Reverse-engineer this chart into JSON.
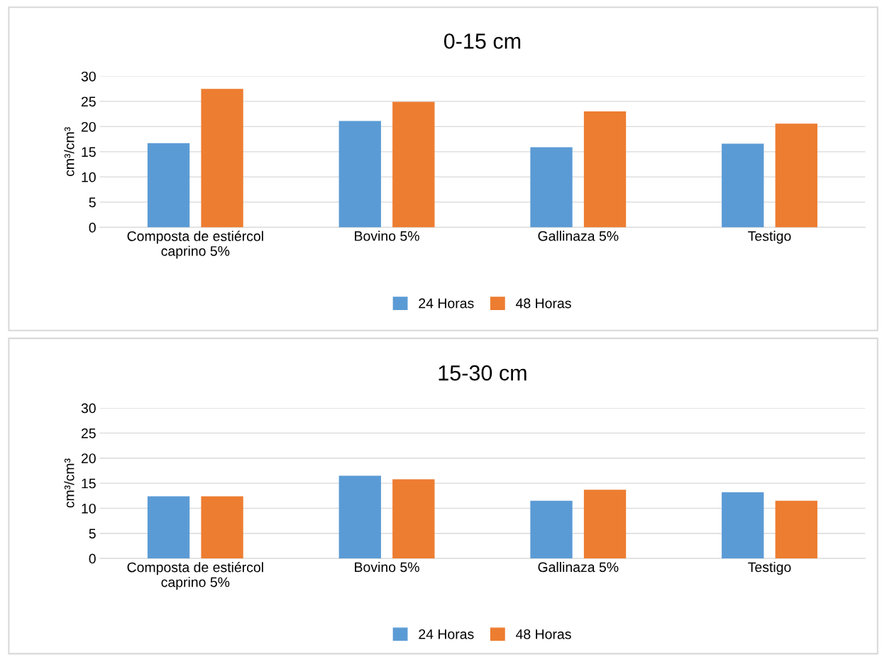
{
  "chart_data": [
    {
      "type": "bar",
      "title": "0-15 cm",
      "ylabel": "cm³/cm³",
      "categories": [
        "Composta de estiércol\ncaprino 5%",
        "Bovino 5%",
        "Gallinaza 5%",
        "Testigo"
      ],
      "series": [
        {
          "name": "24 Horas",
          "color": "#5b9bd5",
          "values": [
            16.7,
            21.1,
            15.9,
            16.6
          ]
        },
        {
          "name": "48 Horas",
          "color": "#ed7d31",
          "values": [
            27.5,
            24.9,
            23.0,
            20.6
          ]
        }
      ],
      "ylim": [
        0,
        30
      ],
      "yticks": [
        0,
        5,
        10,
        15,
        20,
        25,
        30
      ],
      "grid": "y",
      "legend": "bottom"
    },
    {
      "type": "bar",
      "title": "15-30 cm",
      "ylabel": "cm³/cm³",
      "categories": [
        "Composta de estiércol\ncaprino 5%",
        "Bovino 5%",
        "Gallinaza 5%",
        "Testigo"
      ],
      "series": [
        {
          "name": "24 Horas",
          "color": "#5b9bd5",
          "values": [
            12.4,
            16.5,
            11.5,
            13.2
          ]
        },
        {
          "name": "48 Horas",
          "color": "#ed7d31",
          "values": [
            12.4,
            15.8,
            13.7,
            11.5
          ]
        }
      ],
      "ylim": [
        0,
        30
      ],
      "yticks": [
        0,
        5,
        10,
        15,
        20,
        25,
        30
      ],
      "grid": "y",
      "legend": "bottom"
    }
  ]
}
